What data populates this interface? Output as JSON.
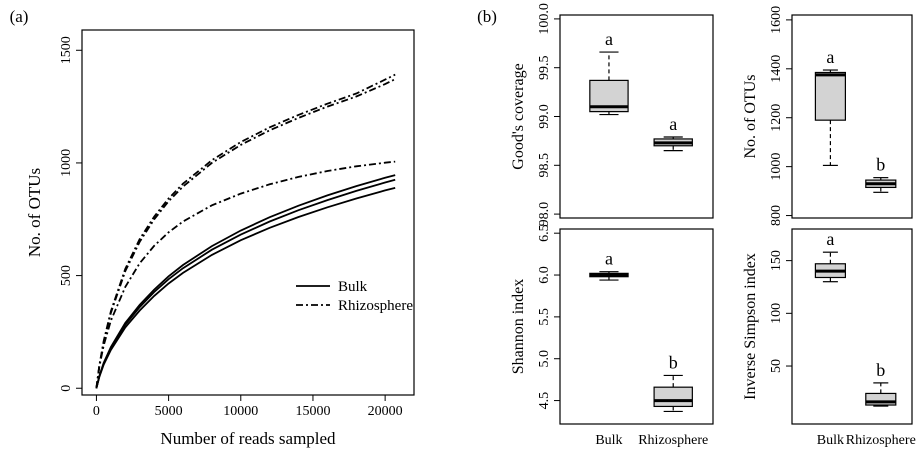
{
  "chart_data": [
    {
      "panel_label": "(a)",
      "type": "line",
      "xlabel": "Number of reads sampled",
      "ylabel": "No. of OTUs",
      "xlim": [
        -1000,
        22000
      ],
      "ylim": [
        -30,
        1590
      ],
      "xticks": [
        0,
        5000,
        10000,
        15000,
        20000
      ],
      "xtick_labels": [
        "0",
        "5000",
        "10000",
        "15000",
        "20000"
      ],
      "yticks": [
        0,
        500,
        1000,
        1500
      ],
      "ytick_labels": [
        "0",
        "500",
        "1000",
        "1500"
      ],
      "legend": {
        "placement": "bottom-right",
        "entries": [
          {
            "label": "Bulk",
            "line": "solid"
          },
          {
            "label": "Rhizosphere",
            "line": "dashdot"
          }
        ]
      },
      "series": [
        {
          "name": "Bulk",
          "line": "solid",
          "x": [
            0,
            200,
            500,
            1000,
            2000,
            3000,
            4000,
            5000,
            6000,
            8000,
            10000,
            12000,
            14000,
            16000,
            18000,
            20000,
            20700
          ],
          "y": [
            0,
            50,
            105,
            170,
            270,
            345,
            410,
            465,
            512,
            592,
            657,
            712,
            760,
            803,
            842,
            878,
            889
          ]
        },
        {
          "name": "Bulk",
          "line": "solid",
          "x": [
            0,
            200,
            500,
            1000,
            2000,
            3000,
            4000,
            5000,
            6000,
            8000,
            10000,
            12000,
            14000,
            16000,
            18000,
            20000,
            20700
          ],
          "y": [
            0,
            52,
            110,
            178,
            282,
            360,
            427,
            484,
            533,
            615,
            682,
            740,
            790,
            835,
            876,
            913,
            925
          ]
        },
        {
          "name": "Bulk",
          "line": "solid",
          "x": [
            0,
            200,
            500,
            1000,
            2000,
            3000,
            4000,
            5000,
            6000,
            8000,
            10000,
            12000,
            14000,
            16000,
            18000,
            20000,
            20700
          ],
          "y": [
            0,
            54,
            113,
            183,
            290,
            370,
            438,
            497,
            547,
            631,
            700,
            759,
            810,
            856,
            897,
            934,
            946
          ]
        },
        {
          "name": "Rhizosphere",
          "line": "dashdot",
          "x": [
            0,
            200,
            500,
            1000,
            2000,
            3000,
            4000,
            5000,
            6000,
            8000,
            10000,
            12000,
            14000,
            16000,
            18000,
            20000,
            20700
          ],
          "y": [
            0,
            95,
            190,
            300,
            450,
            555,
            632,
            692,
            740,
            812,
            864,
            905,
            938,
            964,
            985,
            1001,
            1006
          ]
        },
        {
          "name": "Rhizosphere",
          "line": "dashdot",
          "x": [
            0,
            200,
            500,
            1000,
            2000,
            3000,
            4000,
            5000,
            6000,
            8000,
            10000,
            12000,
            14000,
            16000,
            18000,
            20000,
            20700
          ],
          "y": [
            0,
            98,
            205,
            335,
            520,
            650,
            750,
            830,
            895,
            1000,
            1080,
            1145,
            1200,
            1250,
            1295,
            1350,
            1372
          ]
        },
        {
          "name": "Rhizosphere",
          "line": "dashdot",
          "x": [
            0,
            200,
            500,
            1000,
            2000,
            3000,
            4000,
            5000,
            6000,
            8000,
            10000,
            12000,
            14000,
            16000,
            18000,
            20000,
            20700
          ],
          "y": [
            0,
            100,
            210,
            342,
            530,
            662,
            762,
            842,
            908,
            1012,
            1093,
            1158,
            1213,
            1263,
            1308,
            1370,
            1392
          ]
        }
      ]
    },
    {
      "panel_label": "(b)",
      "type": "box",
      "ylabel": "Good's coverage",
      "ylim": [
        97.96,
        100.04
      ],
      "yticks": [
        98.0,
        98.5,
        99.0,
        99.5,
        100.0
      ],
      "ytick_labels": [
        "98.0",
        "98.5",
        "99.0",
        "99.5",
        "100.0"
      ],
      "categories": [
        "Bulk",
        "Rhizosphere"
      ],
      "boxes": [
        {
          "min": 99.02,
          "q1": 99.05,
          "median": 99.1,
          "q3": 99.37,
          "max": 99.66,
          "group_letter": "a"
        },
        {
          "min": 98.65,
          "q1": 98.7,
          "median": 98.73,
          "q3": 98.77,
          "max": 98.79,
          "group_letter": "a"
        }
      ]
    },
    {
      "type": "box",
      "ylabel": "No. of OTUs",
      "ylim": [
        790,
        1620
      ],
      "yticks": [
        800,
        1000,
        1200,
        1400,
        1600
      ],
      "ytick_labels": [
        "800",
        "1000",
        "1200",
        "1400",
        "1600"
      ],
      "categories": [
        "Bulk",
        "Rhizosphere"
      ],
      "boxes": [
        {
          "min": 1005,
          "q1": 1190,
          "median": 1375,
          "q3": 1385,
          "max": 1395,
          "group_letter": "a"
        },
        {
          "min": 895,
          "q1": 915,
          "median": 930,
          "q3": 945,
          "max": 955,
          "group_letter": "b"
        }
      ]
    },
    {
      "type": "box",
      "ylabel": "Shannon index",
      "ylim": [
        4.22,
        6.55
      ],
      "yticks": [
        4.5,
        5.0,
        5.5,
        6.0,
        6.5
      ],
      "ytick_labels": [
        "4.5",
        "5.0",
        "5.5",
        "6.0",
        "6.5"
      ],
      "categories": [
        "Bulk",
        "Rhizosphere"
      ],
      "boxes": [
        {
          "min": 5.94,
          "q1": 5.98,
          "median": 6.0,
          "q3": 6.02,
          "max": 6.04,
          "group_letter": "a"
        },
        {
          "min": 4.37,
          "q1": 4.43,
          "median": 4.5,
          "q3": 4.66,
          "max": 4.8,
          "group_letter": "b"
        }
      ]
    },
    {
      "type": "box",
      "ylabel": "Inverse Simpson index",
      "ylim": [
        -5,
        180
      ],
      "yticks": [
        50,
        100,
        150
      ],
      "ytick_labels": [
        "50",
        "100",
        "150"
      ],
      "categories": [
        "Bulk",
        "Rhizosphere"
      ],
      "boxes": [
        {
          "min": 130,
          "q1": 134,
          "median": 140,
          "q3": 147,
          "max": 158,
          "group_letter": "a"
        },
        {
          "min": 12,
          "q1": 13,
          "median": 16,
          "q3": 24,
          "max": 34,
          "group_letter": "b"
        }
      ]
    }
  ]
}
